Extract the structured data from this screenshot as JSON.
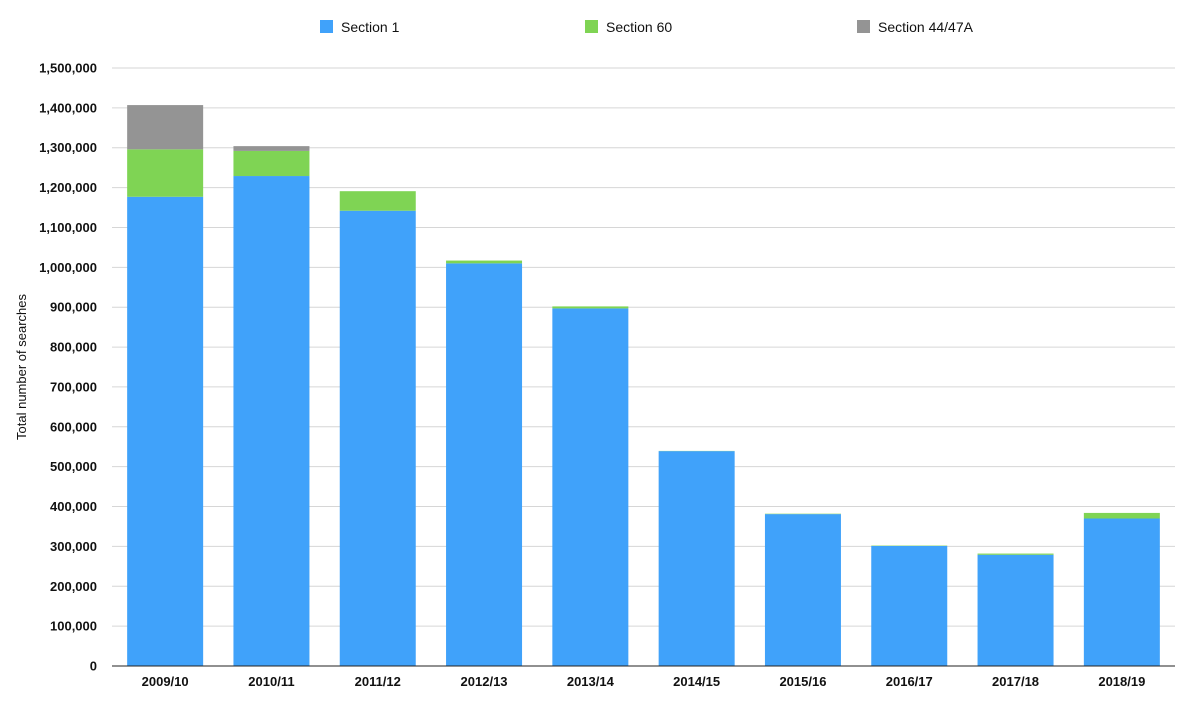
{
  "chart_data": {
    "type": "bar",
    "stacked": true,
    "title": "",
    "xlabel": "",
    "ylabel": "Total number of searches",
    "ylim": [
      0,
      1500000
    ],
    "y_ticks": [
      0,
      100000,
      200000,
      300000,
      400000,
      500000,
      600000,
      700000,
      800000,
      900000,
      1000000,
      1100000,
      1200000,
      1300000,
      1400000,
      1500000
    ],
    "y_tick_labels": [
      "0",
      "100,000",
      "200,000",
      "300,000",
      "400,000",
      "500,000",
      "600,000",
      "700,000",
      "800,000",
      "900,000",
      "1,000,000",
      "1,100,000",
      "1,200,000",
      "1,300,000",
      "1,400,000",
      "1,500,000"
    ],
    "grid": true,
    "legend_position": "top",
    "categories": [
      "2009/10",
      "2010/11",
      "2011/12",
      "2012/13",
      "2013/14",
      "2014/15",
      "2015/16",
      "2016/17",
      "2017/18",
      "2018/19"
    ],
    "series": [
      {
        "name": "Section 1",
        "color": "#40a2fa",
        "values": [
          1177000,
          1229000,
          1142000,
          1010000,
          897000,
          539000,
          381000,
          301000,
          279000,
          370000
        ]
      },
      {
        "name": "Section 60",
        "color": "#7fd454",
        "values": [
          119000,
          63000,
          49000,
          7000,
          5000,
          500,
          1000,
          1000,
          3000,
          14000
        ]
      },
      {
        "name": "Section 44/47A",
        "color": "#949494",
        "values": [
          111000,
          12000,
          0,
          0,
          0,
          0,
          0,
          0,
          0,
          0
        ]
      }
    ]
  }
}
